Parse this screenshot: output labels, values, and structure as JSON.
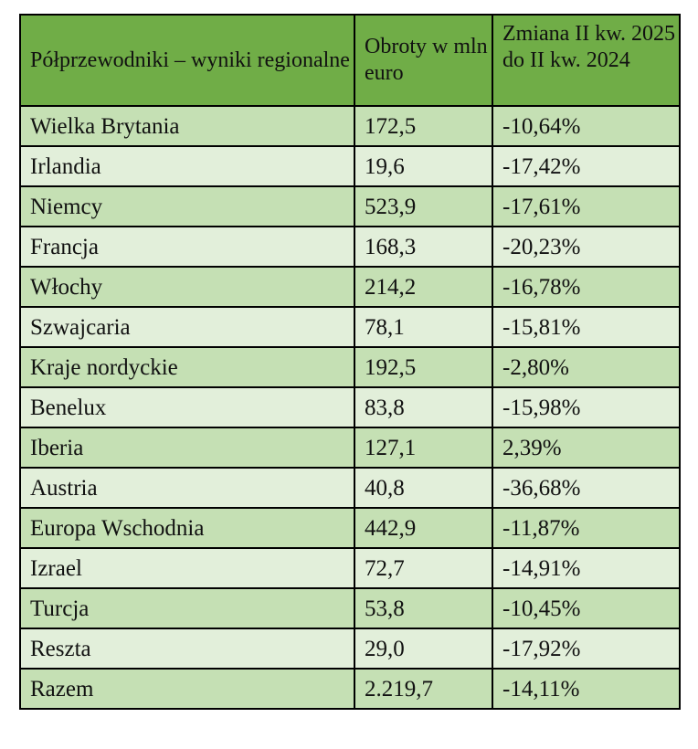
{
  "table": {
    "headers": [
      "Półprzewodniki – wyniki regionalne",
      "Obroty w mln euro",
      "Zmiana II kw. 2025 do II kw. 2024"
    ],
    "rows": [
      [
        "Wielka Brytania",
        "172,5",
        "-10,64%"
      ],
      [
        "Irlandia",
        "19,6",
        "-17,42%"
      ],
      [
        "Niemcy",
        "523,9",
        "-17,61%"
      ],
      [
        "Francja",
        "168,3",
        "-20,23%"
      ],
      [
        "Włochy",
        "214,2",
        "-16,78%"
      ],
      [
        "Szwajcaria",
        "78,1",
        "-15,81%"
      ],
      [
        "Kraje nordyckie",
        "192,5",
        "-2,80%"
      ],
      [
        "Benelux",
        "83,8",
        "-15,98%"
      ],
      [
        "Iberia",
        "127,1",
        "2,39%"
      ],
      [
        "Austria",
        "40,8",
        "-36,68%"
      ],
      [
        "Europa Wschodnia",
        "442,9",
        "-11,87%"
      ],
      [
        "Izrael",
        "72,7",
        "-14,91%"
      ],
      [
        "Turcja",
        "53,8",
        "-10,45%"
      ],
      [
        "Reszta",
        "29,0",
        "-17,92%"
      ],
      [
        "Razem",
        "2.219,7",
        "-14,11%"
      ]
    ]
  },
  "colors": {
    "header_bg": "#70ad47",
    "row_dark_bg": "#c5e0b4",
    "row_light_bg": "#e2efda",
    "border": "#000000"
  }
}
